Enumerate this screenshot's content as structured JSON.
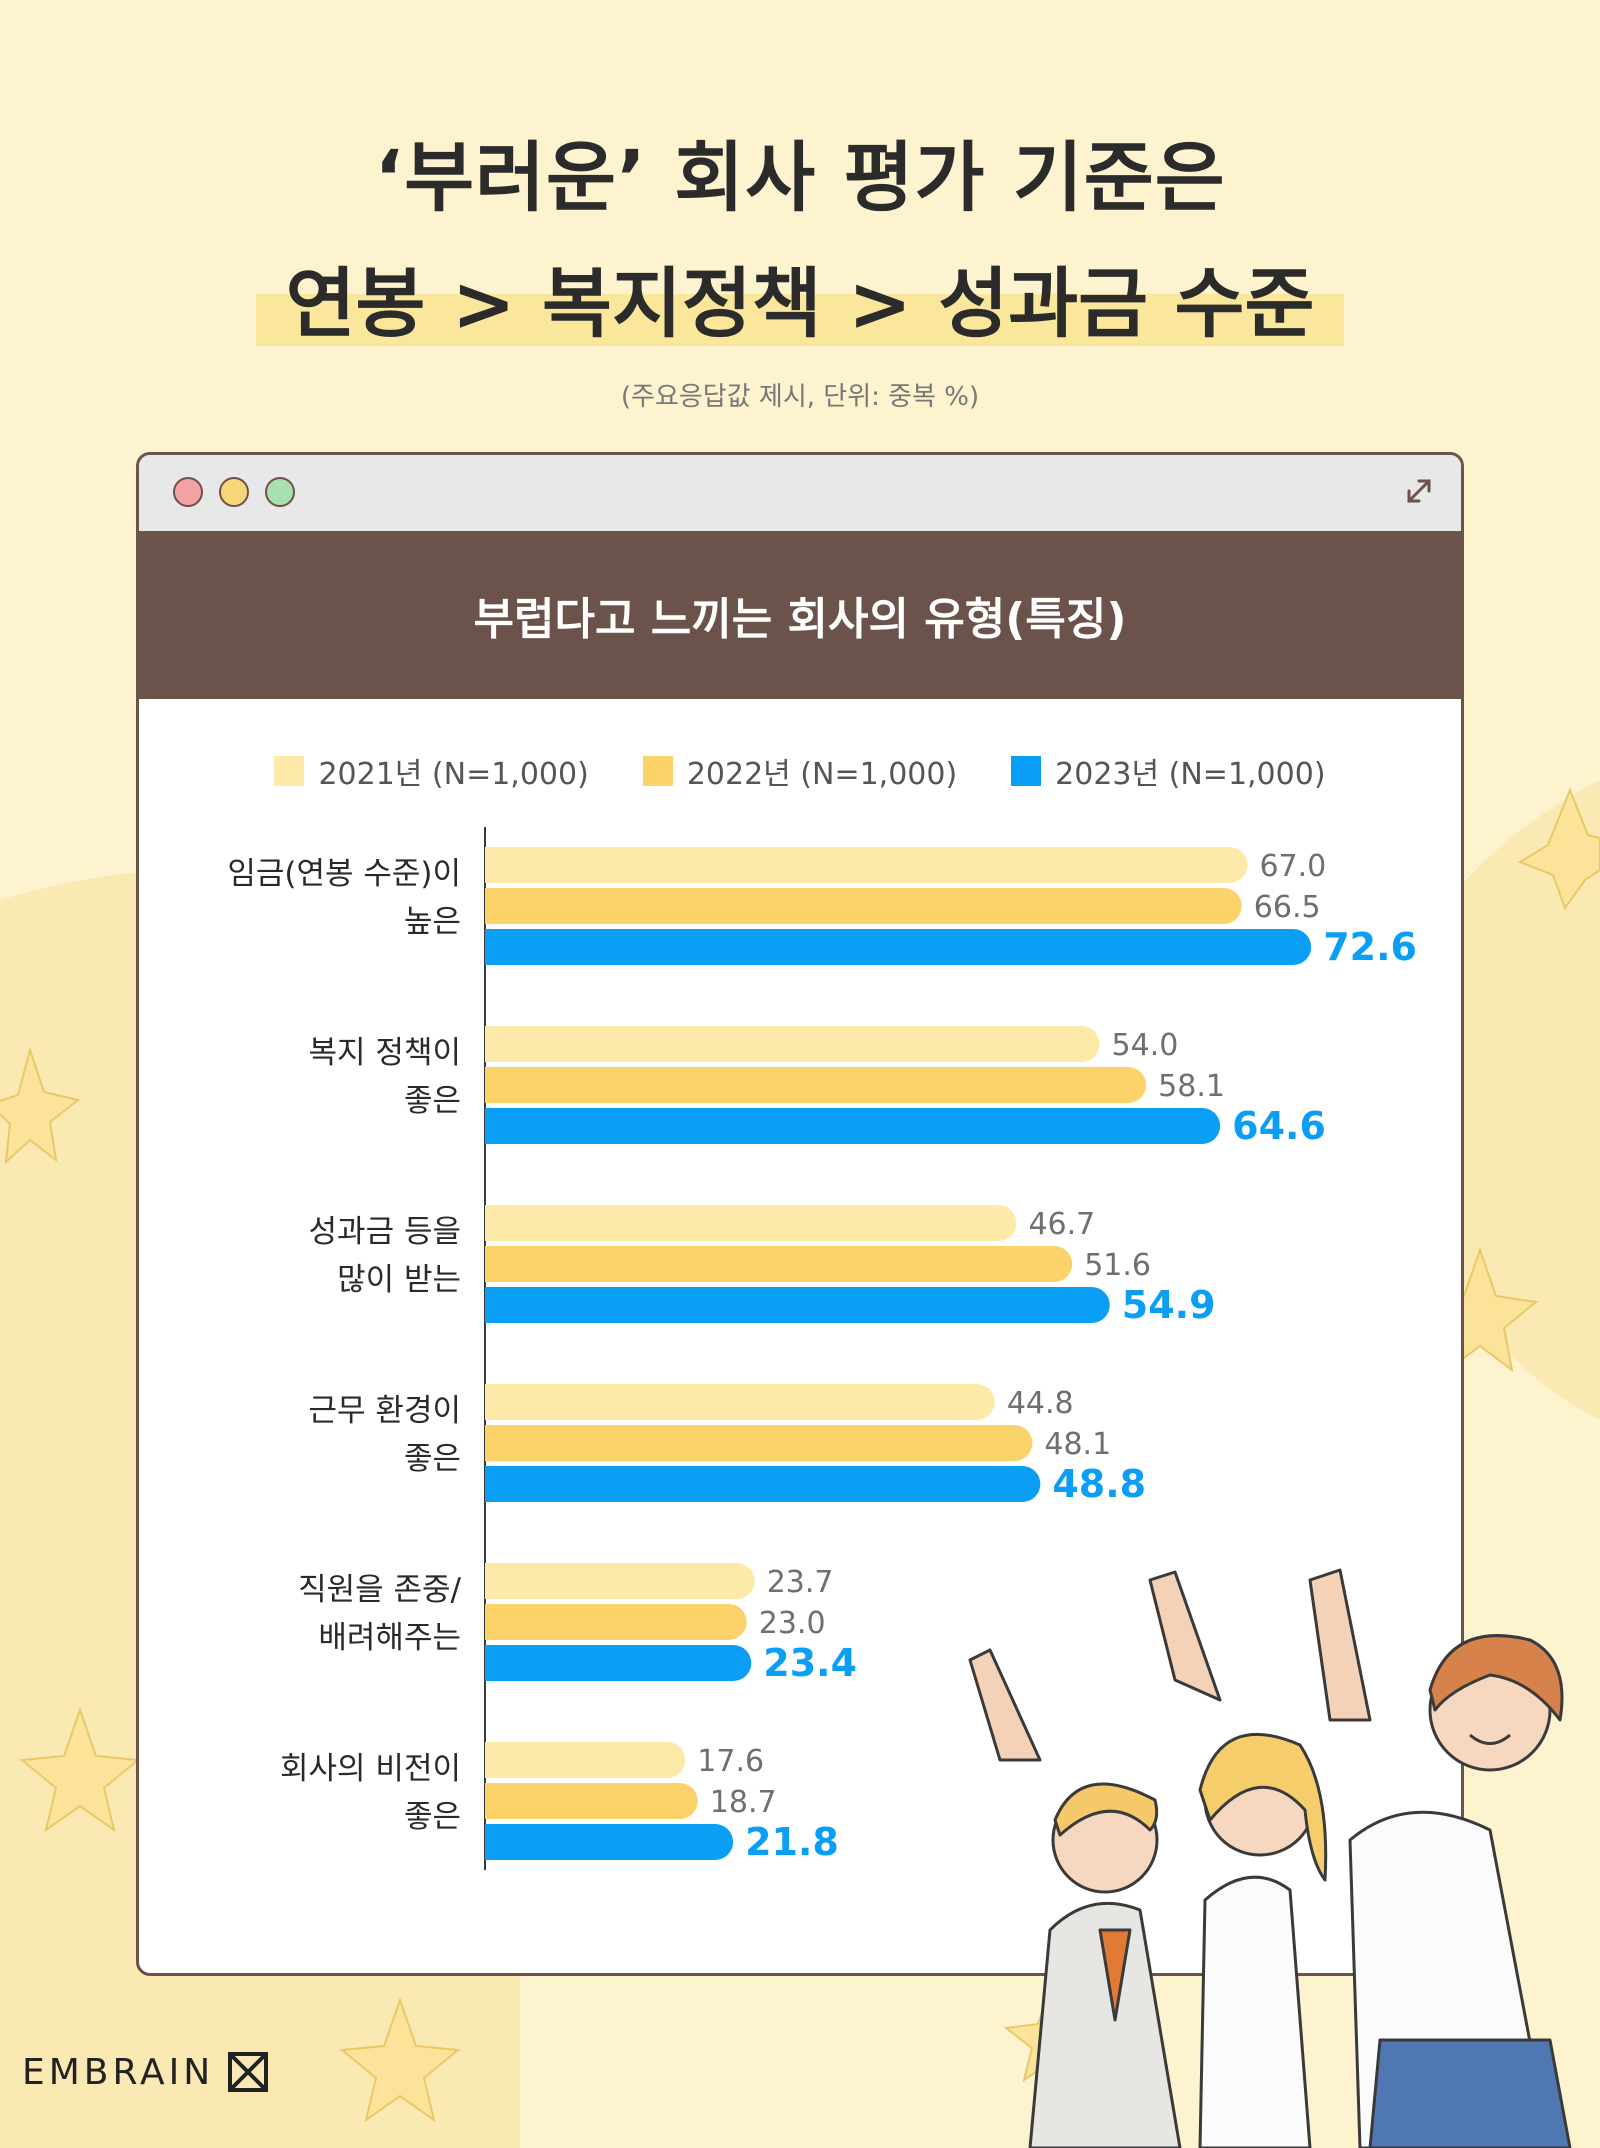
{
  "headline": {
    "line1": "‘부러운’ 회사 평가 기준은",
    "line2": "연봉 > 복지정책 > 성과금 수준"
  },
  "subnote": "(주요응답값 제시, 단위: 중복 %)",
  "panel": {
    "title": "부럽다고 느끼는 회사의 유형(특징)"
  },
  "footer": {
    "brand": "EMBRAIN"
  },
  "colors": {
    "y2021": "#fde9a8",
    "y2022": "#fbd36a",
    "y2023": "#0a9ef5",
    "header": "#6b524a",
    "background": "#fdf3cf"
  },
  "icons": {
    "expand": "expand-icon",
    "logo": "embrain-logo-icon"
  },
  "chart_data": {
    "type": "bar",
    "orientation": "horizontal",
    "title": "부럽다고 느끼는 회사의 유형(특징)",
    "categories": [
      [
        "임금(연봉 수준)이",
        "높은"
      ],
      [
        "복지 정책이",
        "좋은"
      ],
      [
        "성과금 등을",
        "많이 받는"
      ],
      [
        "근무 환경이",
        "좋은"
      ],
      [
        "직원을 존중/",
        "배려해주는"
      ],
      [
        "회사의 비전이",
        "좋은"
      ]
    ],
    "series": [
      {
        "name": "2021년 (N=1,000)",
        "color": "#fde9a8",
        "values": [
          67.0,
          54.0,
          46.7,
          44.8,
          23.7,
          17.6
        ],
        "labels": [
          "67.0",
          "54.0",
          "46.7",
          "44.8",
          "23.7",
          "17.6"
        ]
      },
      {
        "name": "2022년 (N=1,000)",
        "color": "#fbd36a",
        "values": [
          66.5,
          58.1,
          51.6,
          48.1,
          23.0,
          18.7
        ],
        "labels": [
          "66.5",
          "58.1",
          "51.6",
          "48.1",
          "23.0",
          "18.7"
        ]
      },
      {
        "name": "2023년 (N=1,000)",
        "color": "#0a9ef5",
        "values": [
          72.6,
          64.6,
          54.9,
          48.8,
          23.4,
          21.8
        ],
        "labels": [
          "72.6",
          "64.6",
          "54.9",
          "48.8",
          "23.4",
          "21.8"
        ]
      }
    ],
    "xlim": [
      0,
      100
    ],
    "legend_position": "top-center",
    "grid": false
  }
}
